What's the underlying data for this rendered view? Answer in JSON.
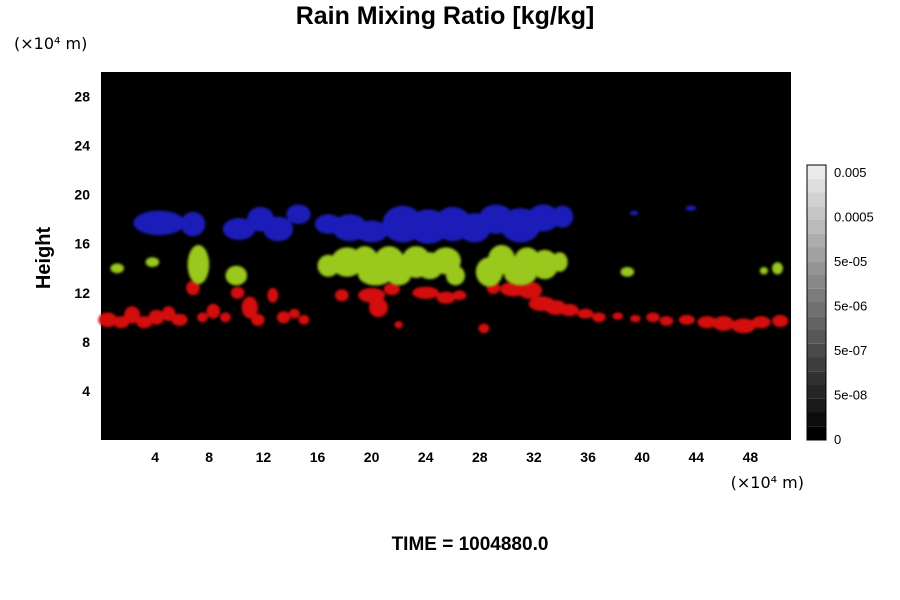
{
  "chart_data": {
    "type": "heatmap",
    "title": "Rain Mixing Ratio [kg/kg]",
    "ylabel": "Height",
    "x_unit": "(×10⁴ m)",
    "y_unit": "(×10⁴ m)",
    "x_ticks": [
      4,
      8,
      12,
      16,
      20,
      24,
      28,
      32,
      36,
      40,
      44,
      48
    ],
    "y_ticks": [
      4,
      8,
      12,
      16,
      20,
      24,
      28
    ],
    "xlim": [
      0,
      51
    ],
    "ylim": [
      0,
      30
    ],
    "time_label": "TIME = 1004880.0",
    "background_color": "#000000",
    "colorbar": {
      "labels": [
        "0",
        "5e-08",
        "5e-07",
        "5e-06",
        "5e-05",
        "0.0005",
        "0.005"
      ],
      "levels": 20
    },
    "layers": [
      {
        "name": "red",
        "color": "#d41010",
        "blobs": [
          [
            0.5,
            9.8,
            0.7,
            0.6
          ],
          [
            1.5,
            9.6,
            0.6,
            0.5
          ],
          [
            2.3,
            10.2,
            0.6,
            0.7
          ],
          [
            3.2,
            9.6,
            0.6,
            0.5
          ],
          [
            4.1,
            10.0,
            0.6,
            0.6
          ],
          [
            5.0,
            10.3,
            0.5,
            0.6
          ],
          [
            5.8,
            9.8,
            0.6,
            0.5
          ],
          [
            6.8,
            12.4,
            0.5,
            0.6
          ],
          [
            7.5,
            10.0,
            0.4,
            0.4
          ],
          [
            8.3,
            10.5,
            0.5,
            0.6
          ],
          [
            9.2,
            10.0,
            0.4,
            0.4
          ],
          [
            10.1,
            12.0,
            0.5,
            0.5
          ],
          [
            11.0,
            10.8,
            0.6,
            0.9
          ],
          [
            11.6,
            9.8,
            0.5,
            0.5
          ],
          [
            12.7,
            11.8,
            0.4,
            0.6
          ],
          [
            13.5,
            10.0,
            0.5,
            0.5
          ],
          [
            14.3,
            10.3,
            0.4,
            0.4
          ],
          [
            15.0,
            9.8,
            0.4,
            0.4
          ],
          [
            17.8,
            11.8,
            0.5,
            0.5
          ],
          [
            20.0,
            11.8,
            1.0,
            0.6
          ],
          [
            20.5,
            10.8,
            0.7,
            0.8
          ],
          [
            21.5,
            12.3,
            0.6,
            0.5
          ],
          [
            22.0,
            9.4,
            0.3,
            0.3
          ],
          [
            24.0,
            12.0,
            1.0,
            0.5
          ],
          [
            25.5,
            11.6,
            0.7,
            0.5
          ],
          [
            26.5,
            11.8,
            0.5,
            0.4
          ],
          [
            28.3,
            9.1,
            0.4,
            0.4
          ],
          [
            29.0,
            12.4,
            0.5,
            0.5
          ],
          [
            30.5,
            12.3,
            1.0,
            0.6
          ],
          [
            31.7,
            12.2,
            0.9,
            0.7
          ],
          [
            32.6,
            11.1,
            1.0,
            0.6
          ],
          [
            33.6,
            10.8,
            0.8,
            0.6
          ],
          [
            34.6,
            10.6,
            0.7,
            0.5
          ],
          [
            35.8,
            10.3,
            0.6,
            0.4
          ],
          [
            36.8,
            10.0,
            0.5,
            0.4
          ],
          [
            38.2,
            10.1,
            0.4,
            0.3
          ],
          [
            39.5,
            9.9,
            0.4,
            0.3
          ],
          [
            40.8,
            10.0,
            0.5,
            0.4
          ],
          [
            41.8,
            9.7,
            0.5,
            0.4
          ],
          [
            43.3,
            9.8,
            0.6,
            0.4
          ],
          [
            44.8,
            9.6,
            0.7,
            0.5
          ],
          [
            46.0,
            9.5,
            0.8,
            0.6
          ],
          [
            47.5,
            9.3,
            0.9,
            0.6
          ],
          [
            48.8,
            9.6,
            0.7,
            0.5
          ],
          [
            50.2,
            9.7,
            0.6,
            0.5
          ]
        ]
      },
      {
        "name": "green",
        "color": "#9ac81c",
        "blobs": [
          [
            1.2,
            14.0,
            0.5,
            0.4
          ],
          [
            3.8,
            14.5,
            0.5,
            0.4
          ],
          [
            7.2,
            14.3,
            0.8,
            1.6
          ],
          [
            10.0,
            13.4,
            0.8,
            0.8
          ],
          [
            16.8,
            14.2,
            0.8,
            0.9
          ],
          [
            18.2,
            14.5,
            1.2,
            1.2
          ],
          [
            19.5,
            14.6,
            1.0,
            1.2
          ],
          [
            20.3,
            13.5,
            1.3,
            0.9
          ],
          [
            21.3,
            14.6,
            1.1,
            1.2
          ],
          [
            22.0,
            13.4,
            0.9,
            0.8
          ],
          [
            23.3,
            14.5,
            1.1,
            1.3
          ],
          [
            24.3,
            14.2,
            1.0,
            1.1
          ],
          [
            25.5,
            14.6,
            1.1,
            1.1
          ],
          [
            26.2,
            13.4,
            0.7,
            0.8
          ],
          [
            28.7,
            13.7,
            1.0,
            1.2
          ],
          [
            29.6,
            14.7,
            1.0,
            1.2
          ],
          [
            31.0,
            13.5,
            1.2,
            0.9
          ],
          [
            31.5,
            14.5,
            1.0,
            1.2
          ],
          [
            32.8,
            14.3,
            1.0,
            1.2
          ],
          [
            33.9,
            14.5,
            0.6,
            0.8
          ],
          [
            38.9,
            13.7,
            0.5,
            0.4
          ],
          [
            49.0,
            13.8,
            0.3,
            0.3
          ],
          [
            50.0,
            14.0,
            0.4,
            0.5
          ]
        ]
      },
      {
        "name": "blue",
        "color": "#1c1cb8",
        "blobs": [
          [
            4.3,
            17.7,
            1.9,
            1.0
          ],
          [
            6.8,
            17.6,
            0.9,
            1.0
          ],
          [
            10.2,
            17.2,
            1.2,
            0.9
          ],
          [
            11.8,
            18.0,
            1.0,
            1.0
          ],
          [
            13.1,
            17.2,
            1.1,
            1.0
          ],
          [
            14.6,
            18.4,
            0.9,
            0.8
          ],
          [
            16.8,
            17.6,
            1.0,
            0.8
          ],
          [
            18.4,
            17.3,
            1.3,
            1.1
          ],
          [
            20.0,
            17.0,
            1.2,
            0.9
          ],
          [
            22.3,
            17.6,
            1.5,
            1.5
          ],
          [
            24.2,
            17.4,
            1.5,
            1.4
          ],
          [
            26.0,
            17.6,
            1.4,
            1.4
          ],
          [
            27.6,
            17.3,
            1.2,
            1.2
          ],
          [
            29.2,
            18.0,
            1.3,
            1.2
          ],
          [
            31.0,
            17.5,
            1.5,
            1.4
          ],
          [
            32.7,
            18.1,
            1.2,
            1.1
          ],
          [
            34.1,
            18.2,
            0.8,
            0.9
          ],
          [
            39.4,
            18.5,
            0.3,
            0.2
          ],
          [
            43.6,
            18.9,
            0.4,
            0.2
          ]
        ]
      }
    ]
  }
}
